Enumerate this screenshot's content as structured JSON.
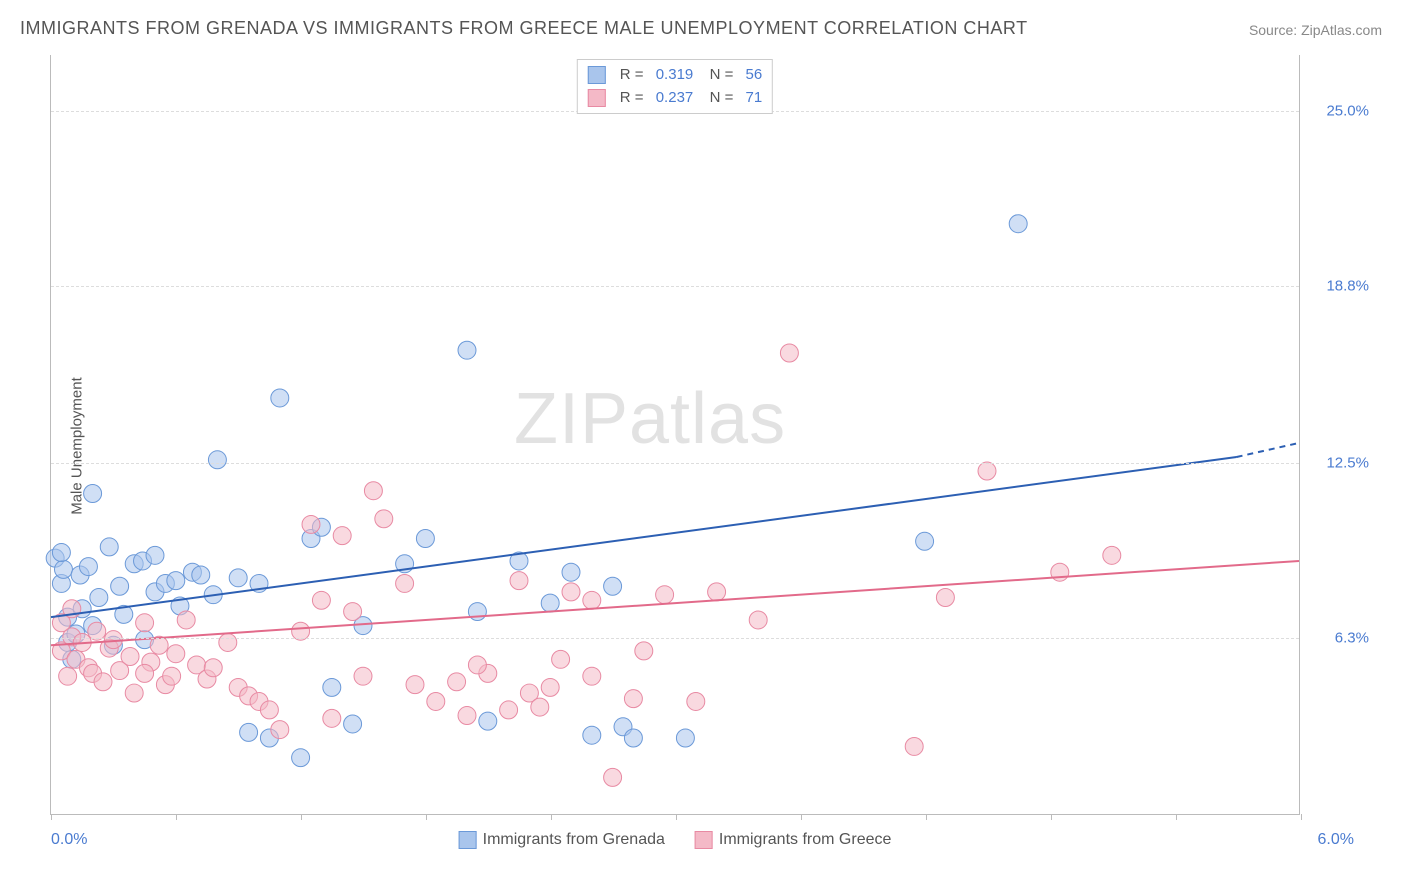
{
  "title": "IMMIGRANTS FROM GRENADA VS IMMIGRANTS FROM GREECE MALE UNEMPLOYMENT CORRELATION CHART",
  "source": "Source: ZipAtlas.com",
  "y_axis_label": "Male Unemployment",
  "watermark": "ZIPatlas",
  "chart": {
    "type": "scatter",
    "background_color": "#ffffff",
    "grid_color": "#dddddd",
    "axis_color": "#bbbbbb",
    "xlim": [
      0.0,
      6.0
    ],
    "ylim": [
      0.0,
      27.0
    ],
    "x_tick_labels": {
      "left": "0.0%",
      "right": "6.0%"
    },
    "x_ticks": [
      0.0,
      0.6,
      1.2,
      1.8,
      2.4,
      3.0,
      3.6,
      4.2,
      4.8,
      5.4,
      6.0
    ],
    "y_gridlines": [
      6.3,
      12.5,
      18.8,
      25.0
    ],
    "y_tick_labels": [
      "6.3%",
      "12.5%",
      "18.8%",
      "25.0%"
    ],
    "title_fontsize": 18,
    "label_fontsize": 15,
    "tick_color": "#4a7bd0",
    "marker_radius": 9,
    "marker_opacity": 0.55,
    "line_width": 2
  },
  "series": [
    {
      "name": "Immigrants from Grenada",
      "color_fill": "#a9c5ec",
      "color_stroke": "#6b99d8",
      "line_color": "#2c5fb3",
      "R": "0.319",
      "N": "56",
      "trend": {
        "x1": 0.0,
        "y1": 7.0,
        "x2": 5.7,
        "y2": 12.7,
        "dash_to": 6.0,
        "dash_y": 13.2
      },
      "points": [
        [
          0.02,
          9.1
        ],
        [
          0.05,
          8.2
        ],
        [
          0.06,
          8.7
        ],
        [
          0.08,
          7.0
        ],
        [
          0.08,
          6.1
        ],
        [
          0.1,
          5.5
        ],
        [
          0.12,
          6.4
        ],
        [
          0.14,
          8.5
        ],
        [
          0.15,
          7.3
        ],
        [
          0.18,
          8.8
        ],
        [
          0.2,
          11.4
        ],
        [
          0.2,
          6.7
        ],
        [
          0.23,
          7.7
        ],
        [
          0.28,
          9.5
        ],
        [
          0.33,
          8.1
        ],
        [
          0.35,
          7.1
        ],
        [
          0.4,
          8.9
        ],
        [
          0.44,
          9.0
        ],
        [
          0.5,
          7.9
        ],
        [
          0.5,
          9.2
        ],
        [
          0.55,
          8.2
        ],
        [
          0.6,
          8.3
        ],
        [
          0.62,
          7.4
        ],
        [
          0.68,
          8.6
        ],
        [
          0.72,
          8.5
        ],
        [
          0.78,
          7.8
        ],
        [
          0.8,
          12.6
        ],
        [
          0.9,
          8.4
        ],
        [
          1.0,
          8.2
        ],
        [
          1.05,
          2.7
        ],
        [
          1.1,
          14.8
        ],
        [
          1.2,
          2.0
        ],
        [
          1.25,
          9.8
        ],
        [
          1.3,
          10.2
        ],
        [
          1.35,
          4.5
        ],
        [
          1.5,
          6.7
        ],
        [
          1.7,
          8.9
        ],
        [
          1.8,
          9.8
        ],
        [
          2.0,
          16.5
        ],
        [
          2.05,
          7.2
        ],
        [
          2.1,
          3.3
        ],
        [
          2.25,
          9.0
        ],
        [
          2.4,
          7.5
        ],
        [
          2.5,
          8.6
        ],
        [
          2.6,
          2.8
        ],
        [
          2.7,
          8.1
        ],
        [
          2.75,
          3.1
        ],
        [
          2.8,
          2.7
        ],
        [
          3.05,
          2.7
        ],
        [
          4.2,
          9.7
        ],
        [
          4.65,
          21.0
        ],
        [
          1.45,
          3.2
        ],
        [
          0.95,
          2.9
        ],
        [
          0.3,
          6.0
        ],
        [
          0.45,
          6.2
        ],
        [
          0.05,
          9.3
        ]
      ]
    },
    {
      "name": "Immigrants from Greece",
      "color_fill": "#f4b9c7",
      "color_stroke": "#e88aa3",
      "line_color": "#e26a8a",
      "R": "0.237",
      "N": "71",
      "trend": {
        "x1": 0.0,
        "y1": 6.0,
        "x2": 6.0,
        "y2": 9.0
      },
      "points": [
        [
          0.05,
          5.8
        ],
        [
          0.08,
          4.9
        ],
        [
          0.1,
          6.3
        ],
        [
          0.12,
          5.5
        ],
        [
          0.15,
          6.1
        ],
        [
          0.18,
          5.2
        ],
        [
          0.2,
          5.0
        ],
        [
          0.22,
          6.5
        ],
        [
          0.25,
          4.7
        ],
        [
          0.28,
          5.9
        ],
        [
          0.3,
          6.2
        ],
        [
          0.33,
          5.1
        ],
        [
          0.38,
          5.6
        ],
        [
          0.4,
          4.3
        ],
        [
          0.45,
          6.8
        ],
        [
          0.48,
          5.4
        ],
        [
          0.52,
          6.0
        ],
        [
          0.55,
          4.6
        ],
        [
          0.6,
          5.7
        ],
        [
          0.65,
          6.9
        ],
        [
          0.7,
          5.3
        ],
        [
          0.75,
          4.8
        ],
        [
          0.78,
          5.2
        ],
        [
          0.85,
          6.1
        ],
        [
          0.9,
          4.5
        ],
        [
          0.95,
          4.2
        ],
        [
          1.0,
          4.0
        ],
        [
          1.05,
          3.7
        ],
        [
          1.1,
          3.0
        ],
        [
          1.2,
          6.5
        ],
        [
          1.25,
          10.3
        ],
        [
          1.3,
          7.6
        ],
        [
          1.35,
          3.4
        ],
        [
          1.4,
          9.9
        ],
        [
          1.45,
          7.2
        ],
        [
          1.55,
          11.5
        ],
        [
          1.6,
          10.5
        ],
        [
          1.7,
          8.2
        ],
        [
          1.75,
          4.6
        ],
        [
          1.85,
          4.0
        ],
        [
          1.95,
          4.7
        ],
        [
          2.0,
          3.5
        ],
        [
          2.1,
          5.0
        ],
        [
          2.2,
          3.7
        ],
        [
          2.25,
          8.3
        ],
        [
          2.3,
          4.3
        ],
        [
          2.35,
          3.8
        ],
        [
          2.45,
          5.5
        ],
        [
          2.5,
          7.9
        ],
        [
          2.6,
          4.9
        ],
        [
          2.6,
          7.6
        ],
        [
          2.7,
          1.3
        ],
        [
          2.8,
          4.1
        ],
        [
          2.85,
          5.8
        ],
        [
          2.95,
          7.8
        ],
        [
          3.1,
          4.0
        ],
        [
          3.2,
          7.9
        ],
        [
          3.4,
          6.9
        ],
        [
          3.55,
          16.4
        ],
        [
          4.15,
          2.4
        ],
        [
          4.3,
          7.7
        ],
        [
          4.5,
          12.2
        ],
        [
          4.85,
          8.6
        ],
        [
          5.1,
          9.2
        ],
        [
          0.05,
          6.8
        ],
        [
          0.1,
          7.3
        ],
        [
          0.45,
          5.0
        ],
        [
          0.58,
          4.9
        ],
        [
          1.5,
          4.9
        ],
        [
          2.05,
          5.3
        ],
        [
          2.4,
          4.5
        ]
      ]
    }
  ],
  "legend_bottom": [
    {
      "label": "Immigrants from Grenada"
    },
    {
      "label": "Immigrants from Greece"
    }
  ]
}
